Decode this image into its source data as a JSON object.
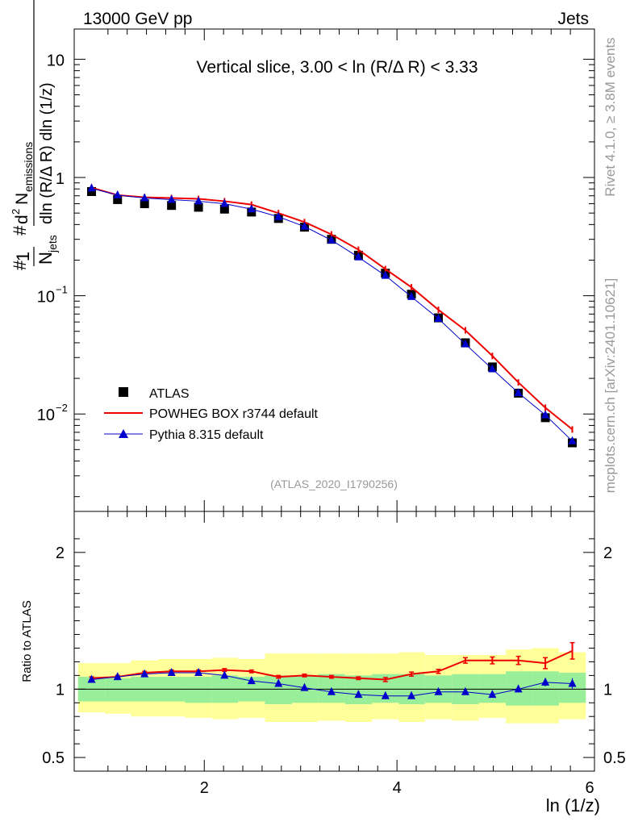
{
  "header": {
    "energy": "13000 GeV pp",
    "category": "Jets",
    "side_top": "Rivet 4.1.0, ≥ 3.8M events",
    "side_bottom": "mcplots.cern.ch [arXiv:2401.10621]",
    "analysis_id": "(ATLAS_2020_I1790256)"
  },
  "chart_data": {
    "type": "line",
    "title": "Vertical slice, 3.00 < ln (R/Δ R) < 3.33",
    "xlabel": "ln (1/z)",
    "ylabel": "#frac{1}{N_{jets}}#frac{d^{2} N_{emissions}}{dln (R/Δ R) dln (1/z)}",
    "xlim": [
      0.65,
      6.05
    ],
    "ylim": [
      0.0015,
      18
    ],
    "yscale": "log",
    "x_ticks": [
      "2",
      "4",
      "6"
    ],
    "y_ticks": [
      {
        "value": 10,
        "base": "10",
        "exp": ""
      },
      {
        "value": 1,
        "base": "1",
        "exp": ""
      },
      {
        "value": 0.1,
        "base": "10",
        "exp": "−1"
      },
      {
        "value": 0.01,
        "base": "10",
        "exp": "−2"
      }
    ],
    "x": [
      0.83,
      1.1,
      1.38,
      1.66,
      1.94,
      2.21,
      2.49,
      2.77,
      3.04,
      3.32,
      3.6,
      3.88,
      4.15,
      4.43,
      4.71,
      4.99,
      5.26,
      5.54,
      5.82
    ],
    "x_edges": [
      0.69,
      0.97,
      1.24,
      1.52,
      1.8,
      2.08,
      2.35,
      2.63,
      2.91,
      3.18,
      3.46,
      3.74,
      4.02,
      4.29,
      4.57,
      4.85,
      5.13,
      5.4,
      5.68,
      5.96
    ],
    "series": [
      {
        "name": "ATLAS",
        "marker": "square",
        "color": "#000000",
        "values": [
          0.76,
          0.65,
          0.6,
          0.58,
          0.56,
          0.54,
          0.51,
          0.45,
          0.38,
          0.3,
          0.22,
          0.155,
          0.103,
          0.065,
          0.04,
          0.025,
          0.015,
          0.0093,
          0.0057
        ]
      },
      {
        "name": "POWHEG BOX r3744 default",
        "marker": "line",
        "color": "#ee0000",
        "values": [
          0.82,
          0.71,
          0.68,
          0.67,
          0.66,
          0.63,
          0.59,
          0.5,
          0.42,
          0.33,
          0.245,
          0.168,
          0.118,
          0.076,
          0.051,
          0.031,
          0.0185,
          0.0113,
          0.0074
        ],
        "ratio": [
          1.08,
          1.09,
          1.12,
          1.13,
          1.13,
          1.14,
          1.13,
          1.09,
          1.1,
          1.09,
          1.08,
          1.07,
          1.11,
          1.13,
          1.21,
          1.21,
          1.21,
          1.19,
          1.28
        ],
        "ratio_err": [
          0.01,
          0.01,
          0.01,
          0.01,
          0.01,
          0.01,
          0.01,
          0.01,
          0.01,
          0.01,
          0.01,
          0.015,
          0.015,
          0.015,
          0.02,
          0.025,
          0.03,
          0.04,
          0.06
        ]
      },
      {
        "name": "Pythia 8.315 default",
        "marker": "triangle",
        "color": "#0000cc",
        "values": [
          0.81,
          0.71,
          0.67,
          0.65,
          0.63,
          0.6,
          0.54,
          0.465,
          0.385,
          0.295,
          0.212,
          0.148,
          0.098,
          0.064,
          0.039,
          0.024,
          0.0151,
          0.0098,
          0.0059
        ],
        "ratio": [
          1.07,
          1.09,
          1.11,
          1.12,
          1.12,
          1.1,
          1.06,
          1.04,
          1.01,
          0.98,
          0.96,
          0.95,
          0.95,
          0.98,
          0.98,
          0.96,
          1.0,
          1.05,
          1.04
        ],
        "ratio_err": [
          0.01,
          0.01,
          0.01,
          0.01,
          0.01,
          0.01,
          0.01,
          0.01,
          0.01,
          0.01,
          0.01,
          0.01,
          0.01,
          0.01,
          0.015,
          0.015,
          0.02,
          0.03,
          0.04
        ]
      }
    ],
    "ratio_panel": {
      "ylabel": "Ratio to ATLAS",
      "ylim": [
        0.4,
        2.3
      ],
      "y_ticks": [
        "0.5",
        "1",
        "2"
      ],
      "green_band": [
        [
          0.91,
          1.09
        ],
        [
          0.91,
          1.08
        ],
        [
          0.91,
          1.09
        ],
        [
          0.91,
          1.09
        ],
        [
          0.9,
          1.09
        ],
        [
          0.9,
          1.1
        ],
        [
          0.91,
          1.09
        ],
        [
          0.89,
          1.1
        ],
        [
          0.9,
          1.1
        ],
        [
          0.9,
          1.11
        ],
        [
          0.89,
          1.1
        ],
        [
          0.9,
          1.11
        ],
        [
          0.89,
          1.11
        ],
        [
          0.9,
          1.1
        ],
        [
          0.89,
          1.11
        ],
        [
          0.9,
          1.11
        ],
        [
          0.88,
          1.13
        ],
        [
          0.88,
          1.13
        ],
        [
          0.9,
          1.12
        ]
      ],
      "yellow_band": [
        [
          0.83,
          1.19
        ],
        [
          0.82,
          1.19
        ],
        [
          0.8,
          1.21
        ],
        [
          0.8,
          1.22
        ],
        [
          0.79,
          1.22
        ],
        [
          0.78,
          1.23
        ],
        [
          0.79,
          1.22
        ],
        [
          0.76,
          1.26
        ],
        [
          0.76,
          1.26
        ],
        [
          0.77,
          1.26
        ],
        [
          0.76,
          1.26
        ],
        [
          0.78,
          1.26
        ],
        [
          0.76,
          1.27
        ],
        [
          0.78,
          1.25
        ],
        [
          0.77,
          1.25
        ],
        [
          0.79,
          1.25
        ],
        [
          0.75,
          1.29
        ],
        [
          0.75,
          1.3
        ],
        [
          0.78,
          1.27
        ]
      ]
    }
  }
}
